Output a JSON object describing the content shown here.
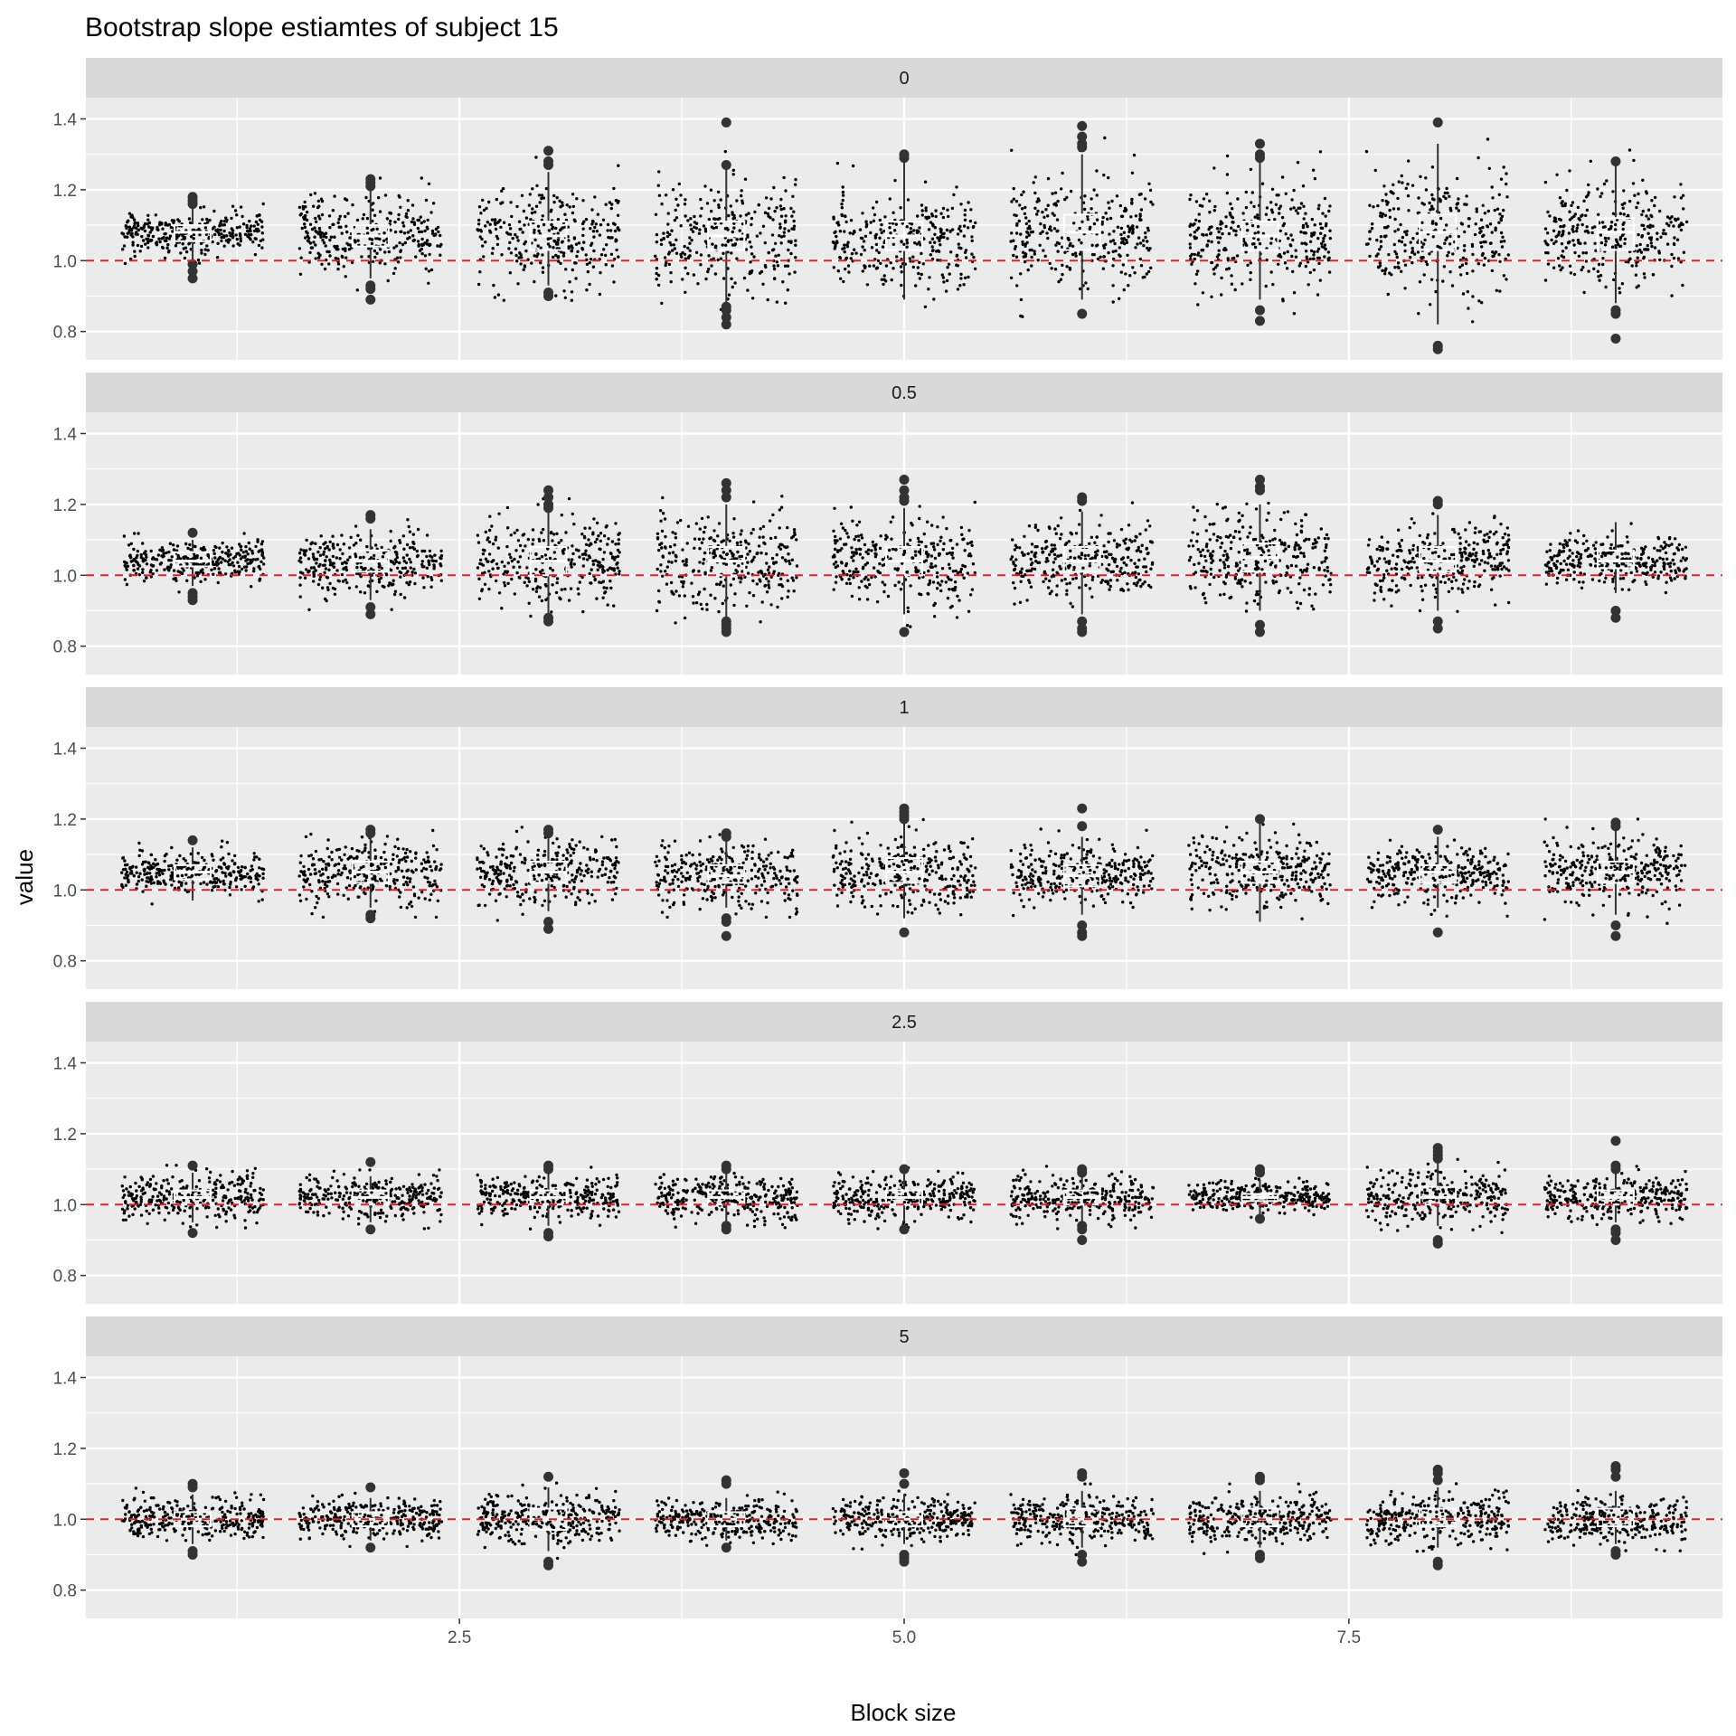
{
  "chart_data": {
    "type": "scatter",
    "title": "Bootstrap slope estiamtes of subject 15",
    "xlabel": "Block size",
    "ylabel": "value",
    "xlim": [
      0.4,
      9.6
    ],
    "ylim": [
      0.72,
      1.46
    ],
    "x_ticks": [
      2.5,
      5.0,
      7.5
    ],
    "x_tick_labels": [
      "2.5",
      "5.0",
      "7.5"
    ],
    "y_ticks": [
      0.8,
      1.0,
      1.2,
      1.4
    ],
    "y_tick_labels": [
      "0.8",
      "1.0",
      "1.2",
      "1.4"
    ],
    "reference_line": {
      "y": 1.0,
      "color": "#e8191c",
      "style": "dashed"
    },
    "grid": true,
    "block_sizes": [
      1,
      2,
      3,
      4,
      5,
      6,
      7,
      8,
      9
    ],
    "points_per_group": 300,
    "jitter_width": 0.4,
    "colors": {
      "panel_bg": "#ebebeb",
      "strip_bg": "#d9d9d9",
      "grid": "#ffffff",
      "points": "#000000",
      "outliers": "#333333",
      "ref_line": "#e8191c"
    },
    "panels": [
      {
        "label": "0",
        "groups": [
          {
            "x": 1,
            "median": 1.08,
            "q1": 1.055,
            "q3": 1.1,
            "low": 1.0,
            "high": 1.16,
            "sd": 0.03,
            "outliers": [
              1.18,
              1.17,
              0.97,
              0.95,
              0.99,
              1.16
            ]
          },
          {
            "x": 2,
            "median": 1.07,
            "q1": 1.04,
            "q3": 1.1,
            "low": 0.95,
            "high": 1.2,
            "sd": 0.055,
            "outliers": [
              1.23,
              1.22,
              1.21,
              0.92,
              0.89,
              0.93
            ]
          },
          {
            "x": 3,
            "median": 1.07,
            "q1": 1.03,
            "q3": 1.11,
            "low": 0.93,
            "high": 1.25,
            "sd": 0.07,
            "outliers": [
              1.31,
              1.28,
              1.27,
              0.9,
              0.91
            ]
          },
          {
            "x": 4,
            "median": 1.07,
            "q1": 1.03,
            "q3": 1.11,
            "low": 0.88,
            "high": 1.26,
            "sd": 0.08,
            "outliers": [
              1.39,
              1.27,
              0.87,
              0.86,
              0.84,
              0.82
            ]
          },
          {
            "x": 5,
            "median": 1.07,
            "q1": 1.03,
            "q3": 1.11,
            "low": 0.89,
            "high": 1.28,
            "sd": 0.07,
            "outliers": [
              1.3,
              1.29
            ]
          },
          {
            "x": 6,
            "median": 1.08,
            "q1": 1.03,
            "q3": 1.13,
            "low": 0.89,
            "high": 1.3,
            "sd": 0.08,
            "outliers": [
              1.38,
              1.35,
              1.33,
              1.32,
              0.85
            ]
          },
          {
            "x": 7,
            "median": 1.07,
            "q1": 1.03,
            "q3": 1.11,
            "low": 0.89,
            "high": 1.28,
            "sd": 0.08,
            "outliers": [
              1.33,
              1.3,
              1.29,
              0.86,
              0.83
            ]
          },
          {
            "x": 8,
            "median": 1.08,
            "q1": 1.03,
            "q3": 1.13,
            "low": 0.82,
            "high": 1.33,
            "sd": 0.09,
            "outliers": [
              1.39,
              0.76,
              0.75
            ]
          },
          {
            "x": 9,
            "median": 1.08,
            "q1": 1.03,
            "q3": 1.12,
            "low": 0.88,
            "high": 1.27,
            "sd": 0.07,
            "outliers": [
              1.28,
              0.86,
              0.85,
              0.78
            ]
          }
        ]
      },
      {
        "label": "0.5",
        "groups": [
          {
            "x": 1,
            "median": 1.04,
            "q1": 1.025,
            "q3": 1.065,
            "low": 0.97,
            "high": 1.1,
            "sd": 0.03,
            "outliers": [
              1.12,
              0.95,
              0.94,
              0.93
            ]
          },
          {
            "x": 2,
            "median": 1.04,
            "q1": 1.01,
            "q3": 1.07,
            "low": 0.93,
            "high": 1.13,
            "sd": 0.045,
            "outliers": [
              1.17,
              1.16,
              0.91,
              0.89
            ]
          },
          {
            "x": 3,
            "median": 1.04,
            "q1": 1.0,
            "q3": 1.08,
            "low": 0.89,
            "high": 1.18,
            "sd": 0.06,
            "outliers": [
              1.24,
              1.22,
              1.2,
              1.19,
              0.88,
              0.87
            ]
          },
          {
            "x": 4,
            "median": 1.04,
            "q1": 1.0,
            "q3": 1.08,
            "low": 0.88,
            "high": 1.2,
            "sd": 0.065,
            "outliers": [
              1.26,
              1.24,
              1.22,
              0.87,
              0.86,
              0.85,
              0.84
            ]
          },
          {
            "x": 5,
            "median": 1.04,
            "q1": 1.0,
            "q3": 1.08,
            "low": 0.89,
            "high": 1.19,
            "sd": 0.065,
            "outliers": [
              1.27,
              1.24,
              1.22,
              1.21,
              0.84
            ]
          },
          {
            "x": 6,
            "median": 1.04,
            "q1": 1.01,
            "q3": 1.08,
            "low": 0.89,
            "high": 1.18,
            "sd": 0.055,
            "outliers": [
              1.22,
              1.21,
              0.87,
              0.85,
              0.84
            ]
          },
          {
            "x": 7,
            "median": 1.05,
            "q1": 1.01,
            "q3": 1.09,
            "low": 0.9,
            "high": 1.2,
            "sd": 0.065,
            "outliers": [
              1.27,
              1.25,
              1.24,
              0.86,
              0.84
            ]
          },
          {
            "x": 8,
            "median": 1.04,
            "q1": 1.01,
            "q3": 1.08,
            "low": 0.9,
            "high": 1.17,
            "sd": 0.055,
            "outliers": [
              1.21,
              1.2,
              0.87,
              0.85
            ]
          },
          {
            "x": 9,
            "median": 1.04,
            "q1": 1.02,
            "q3": 1.07,
            "low": 0.95,
            "high": 1.15,
            "sd": 0.035,
            "outliers": [
              0.9,
              0.88
            ]
          }
        ]
      },
      {
        "label": "1",
        "groups": [
          {
            "x": 1,
            "median": 1.05,
            "q1": 1.03,
            "q3": 1.07,
            "low": 0.97,
            "high": 1.12,
            "sd": 0.03,
            "outliers": [
              1.14
            ]
          },
          {
            "x": 2,
            "median": 1.05,
            "q1": 1.02,
            "q3": 1.08,
            "low": 0.95,
            "high": 1.15,
            "sd": 0.045,
            "outliers": [
              1.17,
              1.16,
              0.93,
              0.92
            ]
          },
          {
            "x": 3,
            "median": 1.05,
            "q1": 1.02,
            "q3": 1.08,
            "low": 0.94,
            "high": 1.15,
            "sd": 0.045,
            "outliers": [
              1.17,
              1.16,
              0.91,
              0.89
            ]
          },
          {
            "x": 4,
            "median": 1.04,
            "q1": 1.02,
            "q3": 1.07,
            "low": 0.95,
            "high": 1.14,
            "sd": 0.045,
            "outliers": [
              1.16,
              1.15,
              0.92,
              0.91,
              0.87
            ]
          },
          {
            "x": 5,
            "median": 1.05,
            "q1": 1.02,
            "q3": 1.09,
            "low": 0.92,
            "high": 1.19,
            "sd": 0.055,
            "outliers": [
              1.23,
              1.22,
              1.21,
              1.2,
              0.88
            ]
          },
          {
            "x": 6,
            "median": 1.04,
            "q1": 1.01,
            "q3": 1.07,
            "low": 0.93,
            "high": 1.15,
            "sd": 0.045,
            "outliers": [
              1.23,
              1.18,
              0.9,
              0.88,
              0.87
            ]
          },
          {
            "x": 7,
            "median": 1.05,
            "q1": 1.02,
            "q3": 1.08,
            "low": 0.91,
            "high": 1.19,
            "sd": 0.05,
            "outliers": [
              1.2
            ]
          },
          {
            "x": 8,
            "median": 1.05,
            "q1": 1.02,
            "q3": 1.07,
            "low": 0.95,
            "high": 1.15,
            "sd": 0.04,
            "outliers": [
              1.17,
              0.88
            ]
          },
          {
            "x": 9,
            "median": 1.05,
            "q1": 1.02,
            "q3": 1.08,
            "low": 0.93,
            "high": 1.17,
            "sd": 0.05,
            "outliers": [
              1.19,
              1.18,
              0.9,
              0.87
            ]
          }
        ]
      },
      {
        "label": "2.5",
        "groups": [
          {
            "x": 1,
            "median": 1.02,
            "q1": 1.0,
            "q3": 1.04,
            "low": 0.95,
            "high": 1.09,
            "sd": 0.035,
            "outliers": [
              1.11,
              0.92
            ]
          },
          {
            "x": 2,
            "median": 1.02,
            "q1": 1.0,
            "q3": 1.04,
            "low": 0.95,
            "high": 1.08,
            "sd": 0.03,
            "outliers": [
              1.12,
              0.93
            ]
          },
          {
            "x": 3,
            "median": 1.02,
            "q1": 1.0,
            "q3": 1.04,
            "low": 0.94,
            "high": 1.09,
            "sd": 0.03,
            "outliers": [
              1.11,
              1.1,
              0.92,
              0.91
            ]
          },
          {
            "x": 4,
            "median": 1.02,
            "q1": 1.0,
            "q3": 1.04,
            "low": 0.95,
            "high": 1.09,
            "sd": 0.03,
            "outliers": [
              1.11,
              1.1,
              0.94,
              0.93
            ]
          },
          {
            "x": 5,
            "median": 1.02,
            "q1": 1.0,
            "q3": 1.04,
            "low": 0.95,
            "high": 1.09,
            "sd": 0.03,
            "outliers": [
              1.1,
              0.93
            ]
          },
          {
            "x": 6,
            "median": 1.02,
            "q1": 1.0,
            "q3": 1.04,
            "low": 0.95,
            "high": 1.09,
            "sd": 0.03,
            "outliers": [
              1.1,
              1.09,
              0.94,
              0.93,
              0.9
            ]
          },
          {
            "x": 7,
            "median": 1.02,
            "q1": 1.01,
            "q3": 1.03,
            "low": 0.97,
            "high": 1.07,
            "sd": 0.02,
            "outliers": [
              1.1,
              1.09,
              0.96
            ]
          },
          {
            "x": 8,
            "median": 1.02,
            "q1": 1.0,
            "q3": 1.05,
            "low": 0.94,
            "high": 1.12,
            "sd": 0.04,
            "outliers": [
              1.16,
              1.15,
              1.14,
              1.13,
              0.9,
              0.89
            ]
          },
          {
            "x": 9,
            "median": 1.02,
            "q1": 1.0,
            "q3": 1.04,
            "low": 0.95,
            "high": 1.09,
            "sd": 0.03,
            "outliers": [
              1.18,
              1.11,
              1.1,
              0.93,
              0.92,
              0.9
            ]
          }
        ]
      },
      {
        "label": "5",
        "groups": [
          {
            "x": 1,
            "median": 1.0,
            "q1": 0.98,
            "q3": 1.02,
            "low": 0.93,
            "high": 1.07,
            "sd": 0.03,
            "outliers": [
              1.1,
              1.09,
              0.91,
              0.9
            ]
          },
          {
            "x": 2,
            "median": 1.0,
            "q1": 0.98,
            "q3": 1.02,
            "low": 0.94,
            "high": 1.06,
            "sd": 0.028,
            "outliers": [
              1.09,
              0.92
            ]
          },
          {
            "x": 3,
            "median": 1.0,
            "q1": 0.97,
            "q3": 1.03,
            "low": 0.91,
            "high": 1.09,
            "sd": 0.035,
            "outliers": [
              1.12,
              0.88,
              0.87
            ]
          },
          {
            "x": 4,
            "median": 1.0,
            "q1": 0.98,
            "q3": 1.02,
            "low": 0.94,
            "high": 1.06,
            "sd": 0.028,
            "outliers": [
              1.11,
              1.1,
              0.92
            ]
          },
          {
            "x": 5,
            "median": 1.0,
            "q1": 0.98,
            "q3": 1.02,
            "low": 0.93,
            "high": 1.07,
            "sd": 0.03,
            "outliers": [
              1.13,
              1.1,
              0.9,
              0.89,
              0.88
            ]
          },
          {
            "x": 6,
            "median": 1.0,
            "q1": 0.98,
            "q3": 1.03,
            "low": 0.92,
            "high": 1.08,
            "sd": 0.033,
            "outliers": [
              1.13,
              1.12,
              0.9,
              0.88
            ]
          },
          {
            "x": 7,
            "median": 1.0,
            "q1": 0.98,
            "q3": 1.03,
            "low": 0.92,
            "high": 1.08,
            "sd": 0.033,
            "outliers": [
              1.12,
              1.11,
              0.9,
              0.89
            ]
          },
          {
            "x": 8,
            "median": 1.0,
            "q1": 0.98,
            "q3": 1.03,
            "low": 0.92,
            "high": 1.09,
            "sd": 0.035,
            "outliers": [
              1.14,
              1.13,
              1.11,
              0.88,
              0.87
            ]
          },
          {
            "x": 9,
            "median": 1.0,
            "q1": 0.98,
            "q3": 1.03,
            "low": 0.93,
            "high": 1.08,
            "sd": 0.032,
            "outliers": [
              1.15,
              1.14,
              1.12,
              0.91,
              0.9
            ]
          }
        ]
      }
    ]
  }
}
